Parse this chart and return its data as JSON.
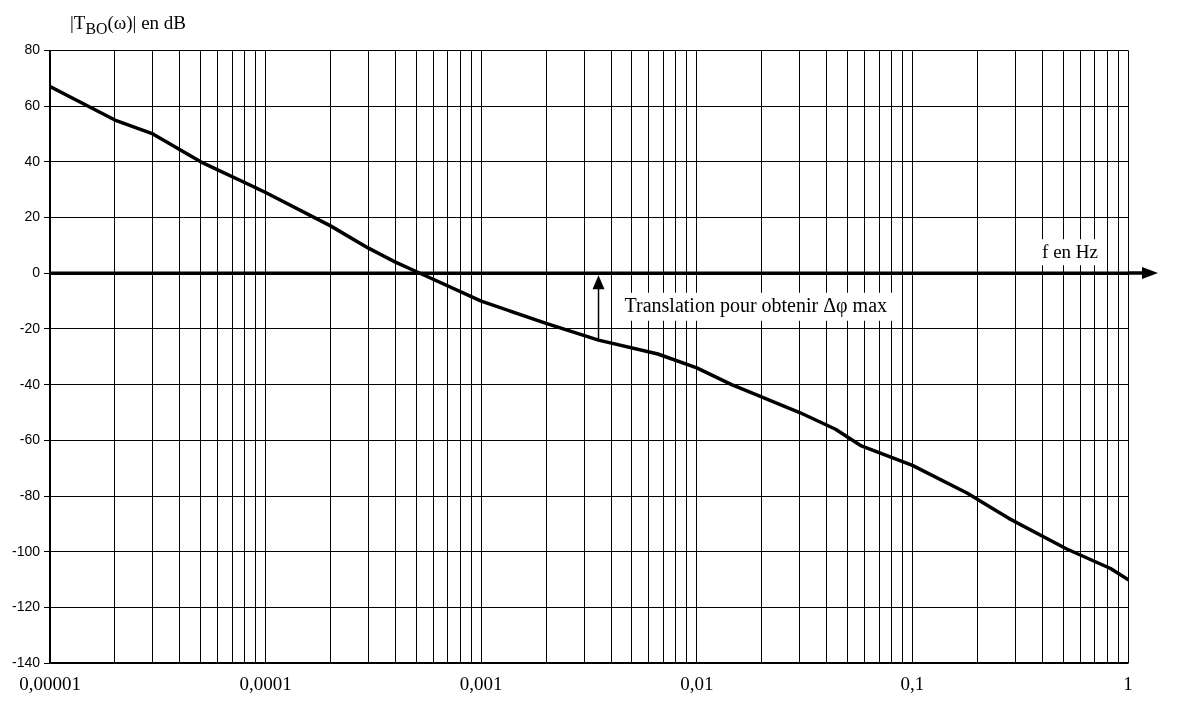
{
  "chart_data": {
    "type": "line",
    "ylabel": "|T$_{BO}$(ω)| en dB",
    "xlabel": "f en Hz",
    "x": [
      1e-05,
      2e-05,
      3e-05,
      5e-05,
      0.0001,
      0.0002,
      0.0003,
      0.0004,
      0.00052,
      0.001,
      0.002,
      0.0035,
      0.0066,
      0.01,
      0.0145,
      0.03,
      0.044,
      0.058,
      0.1,
      0.18,
      0.28,
      0.52,
      0.83,
      1
    ],
    "series": [
      {
        "color": "#000000",
        "values": [
          67,
          55,
          50,
          40,
          29,
          17,
          9,
          4,
          0,
          -10,
          -18,
          -24,
          -29,
          -34,
          -40,
          -50,
          -56,
          -62,
          -69,
          -79,
          -88,
          -99,
          -106,
          -110
        ]
      }
    ],
    "log": "x",
    "xlim": [
      1e-05,
      1
    ],
    "ylim": [
      -140,
      80
    ],
    "xticks": [
      {
        "value": 1e-05,
        "label": "0,00001"
      },
      {
        "value": 2e-05,
        "label": null
      },
      {
        "value": 3e-05,
        "label": null
      },
      {
        "value": 4e-05,
        "label": null
      },
      {
        "value": 5e-05,
        "label": null
      },
      {
        "value": 6e-05,
        "label": null
      },
      {
        "value": 7e-05,
        "label": null
      },
      {
        "value": 8e-05,
        "label": null
      },
      {
        "value": 9e-05,
        "label": null
      },
      {
        "value": 0.0001,
        "label": "0,0001"
      },
      {
        "value": 0.0002,
        "label": null
      },
      {
        "value": 0.0003,
        "label": null
      },
      {
        "value": 0.0004,
        "label": null
      },
      {
        "value": 0.0005,
        "label": null
      },
      {
        "value": 0.0006,
        "label": null
      },
      {
        "value": 0.0007,
        "label": null
      },
      {
        "value": 0.0008,
        "label": null
      },
      {
        "value": 0.0009,
        "label": null
      },
      {
        "value": 0.001,
        "label": "0,001"
      },
      {
        "value": 0.002,
        "label": null
      },
      {
        "value": 0.003,
        "label": null
      },
      {
        "value": 0.004,
        "label": null
      },
      {
        "value": 0.005,
        "label": null
      },
      {
        "value": 0.006,
        "label": null
      },
      {
        "value": 0.007,
        "label": null
      },
      {
        "value": 0.008,
        "label": null
      },
      {
        "value": 0.009,
        "label": null
      },
      {
        "value": 0.01,
        "label": "0,01"
      },
      {
        "value": 0.02,
        "label": null
      },
      {
        "value": 0.03,
        "label": null
      },
      {
        "value": 0.04,
        "label": null
      },
      {
        "value": 0.05,
        "label": null
      },
      {
        "value": 0.06,
        "label": null
      },
      {
        "value": 0.07,
        "label": null
      },
      {
        "value": 0.08,
        "label": null
      },
      {
        "value": 0.09,
        "label": null
      },
      {
        "value": 0.1,
        "label": "0,1"
      },
      {
        "value": 0.2,
        "label": null
      },
      {
        "value": 0.3,
        "label": null
      },
      {
        "value": 0.4,
        "label": null
      },
      {
        "value": 0.5,
        "label": null
      },
      {
        "value": 0.6,
        "label": null
      },
      {
        "value": 0.7,
        "label": null
      },
      {
        "value": 0.8,
        "label": null
      },
      {
        "value": 0.9,
        "label": null
      },
      {
        "value": 1,
        "label": "1"
      }
    ],
    "yticks": [
      -140,
      -120,
      -100,
      -80,
      -60,
      -40,
      -20,
      0,
      20,
      40,
      60,
      80
    ],
    "ref_lines": [
      {
        "axis": "y",
        "value": 0,
        "color": "#000000"
      }
    ],
    "annotations": [
      {
        "text": "Translation pour obtenir Δφ max",
        "x": 0.0035,
        "y": -24
      }
    ],
    "grid": true,
    "legend": false,
    "marker": "none",
    "line_style": "solid"
  }
}
